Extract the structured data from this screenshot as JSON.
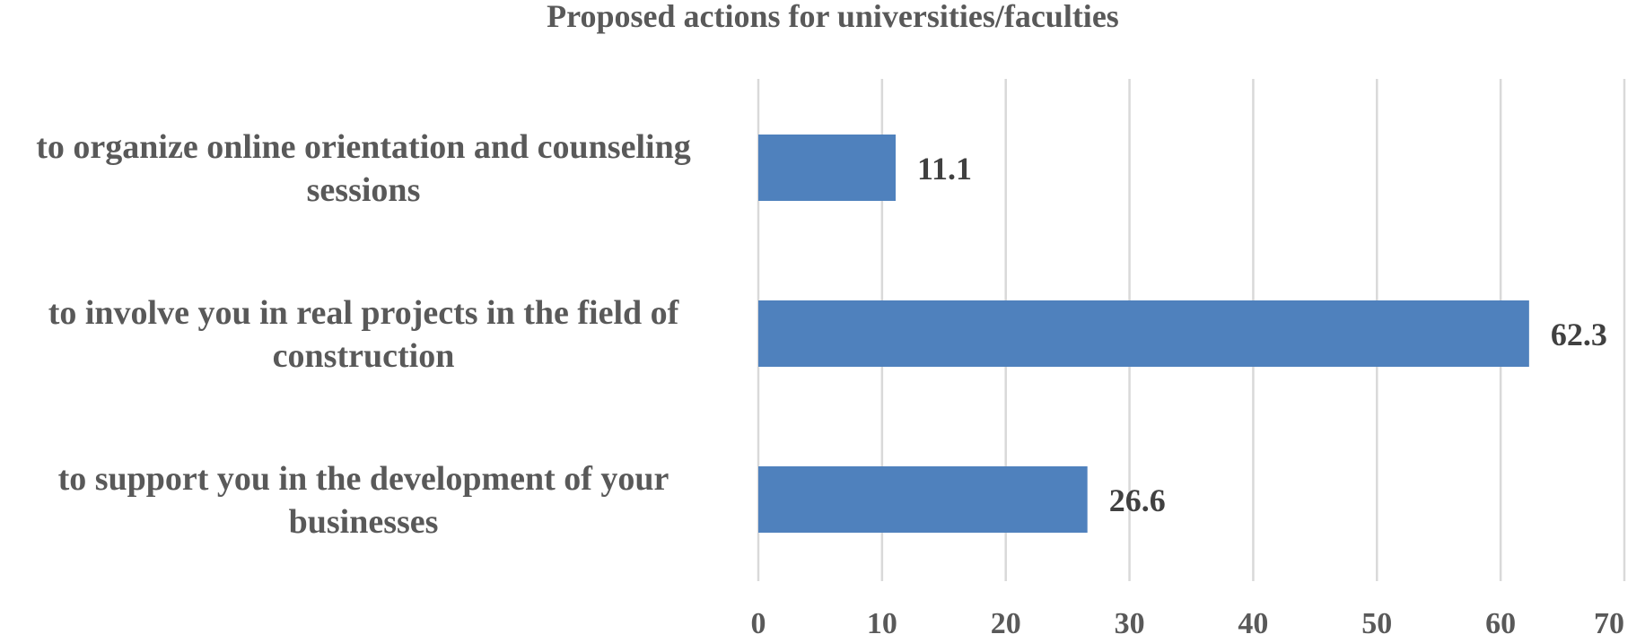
{
  "chart_data": {
    "type": "bar",
    "orientation": "horizontal",
    "title": "Proposed actions for universities/faculties",
    "categories": [
      [
        "to organize online orientation and counseling",
        "sessions"
      ],
      [
        "to involve you in real projects in the field of",
        "construction"
      ],
      [
        "to support you in the development of your",
        "businesses"
      ]
    ],
    "values": [
      11.1,
      62.3,
      26.6
    ],
    "data_labels": [
      "11.1",
      "62.3",
      "26.6"
    ],
    "xlim": [
      0,
      70
    ],
    "xticks": [
      0,
      10,
      20,
      30,
      40,
      50,
      60,
      70
    ],
    "xtick_labels": [
      "0",
      "10",
      "20",
      "30",
      "40",
      "50",
      "60",
      "70"
    ],
    "xlabel": "",
    "ylabel": "",
    "grid": "vertical",
    "legend": "none",
    "bar_color": "#4f81bd"
  }
}
